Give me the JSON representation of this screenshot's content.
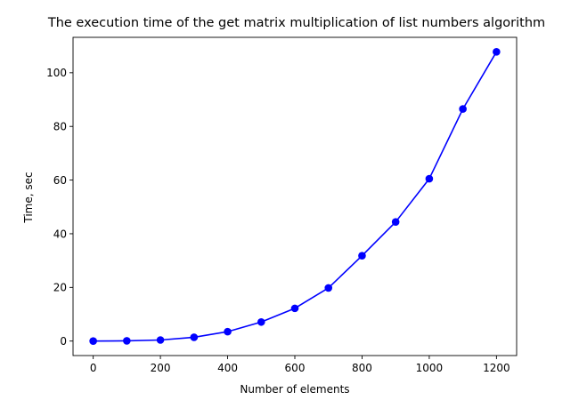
{
  "chart_data": {
    "type": "line",
    "title": "The execution time of the get matrix multiplication of list numbers algorithm",
    "xlabel": "Number of elements",
    "ylabel": "Time, sec",
    "xlim": [
      -60,
      1260
    ],
    "ylim": [
      -5.4,
      113.2
    ],
    "xticks": [
      0,
      200,
      400,
      600,
      800,
      1000,
      1200
    ],
    "yticks": [
      0,
      20,
      40,
      60,
      80,
      100
    ],
    "grid": false,
    "legend": "none",
    "series": [
      {
        "color": "#0000ff",
        "marker": "circle",
        "x": [
          0,
          100,
          200,
          300,
          400,
          500,
          600,
          700,
          800,
          900,
          1000,
          1100,
          1200
        ],
        "y": [
          0.0,
          0.1,
          0.4,
          1.4,
          3.5,
          7.1,
          12.2,
          19.8,
          31.8,
          44.4,
          60.5,
          86.5,
          107.8
        ]
      }
    ]
  }
}
